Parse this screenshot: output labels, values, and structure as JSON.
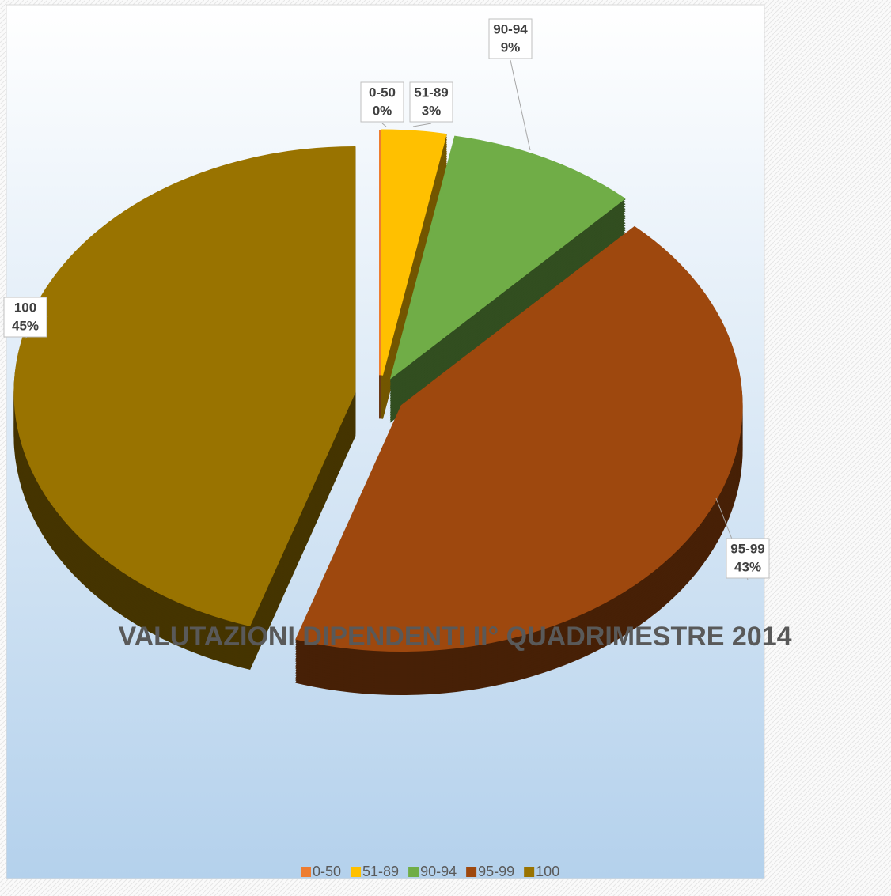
{
  "chart_data": {
    "type": "pie",
    "title": "VALUTAZIONI DIPENDENTI II° QUADRIMESTRE 2014",
    "categories": [
      "0-50",
      "51-89",
      "90-94",
      "95-99",
      "100"
    ],
    "values": [
      0,
      3,
      9,
      43,
      45
    ],
    "value_labels": [
      "0%",
      "3%",
      "9%",
      "43%",
      "45%"
    ],
    "colors": [
      "#ed7d31",
      "#ffc000",
      "#70ad47",
      "#9e480e",
      "#997300"
    ],
    "legend": "bottom"
  }
}
